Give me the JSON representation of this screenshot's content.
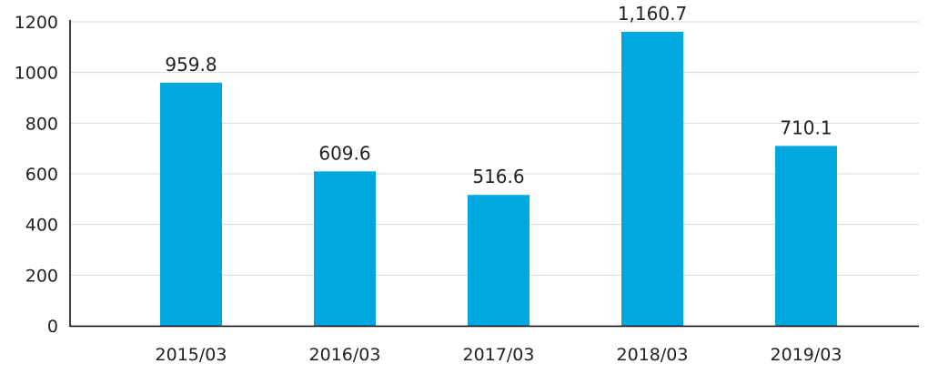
{
  "chart_data": {
    "type": "bar",
    "title": "",
    "xlabel": "",
    "ylabel": "",
    "categories": [
      "2015/03",
      "2016/03",
      "2017/03",
      "2018/03",
      "2019/03"
    ],
    "values": [
      959.8,
      609.6,
      516.6,
      1160.7,
      710.1
    ],
    "value_labels": [
      "959.8",
      "609.6",
      "516.6",
      "1,160.7",
      "710.1"
    ],
    "ylim": [
      0,
      1200
    ],
    "yticks": [
      0,
      200,
      400,
      600,
      800,
      1000,
      1200
    ],
    "grid": true,
    "legend": "none",
    "colors": {
      "bar": "#00a8e0",
      "grid": "#d9d9d9",
      "axis": "#000000"
    }
  }
}
